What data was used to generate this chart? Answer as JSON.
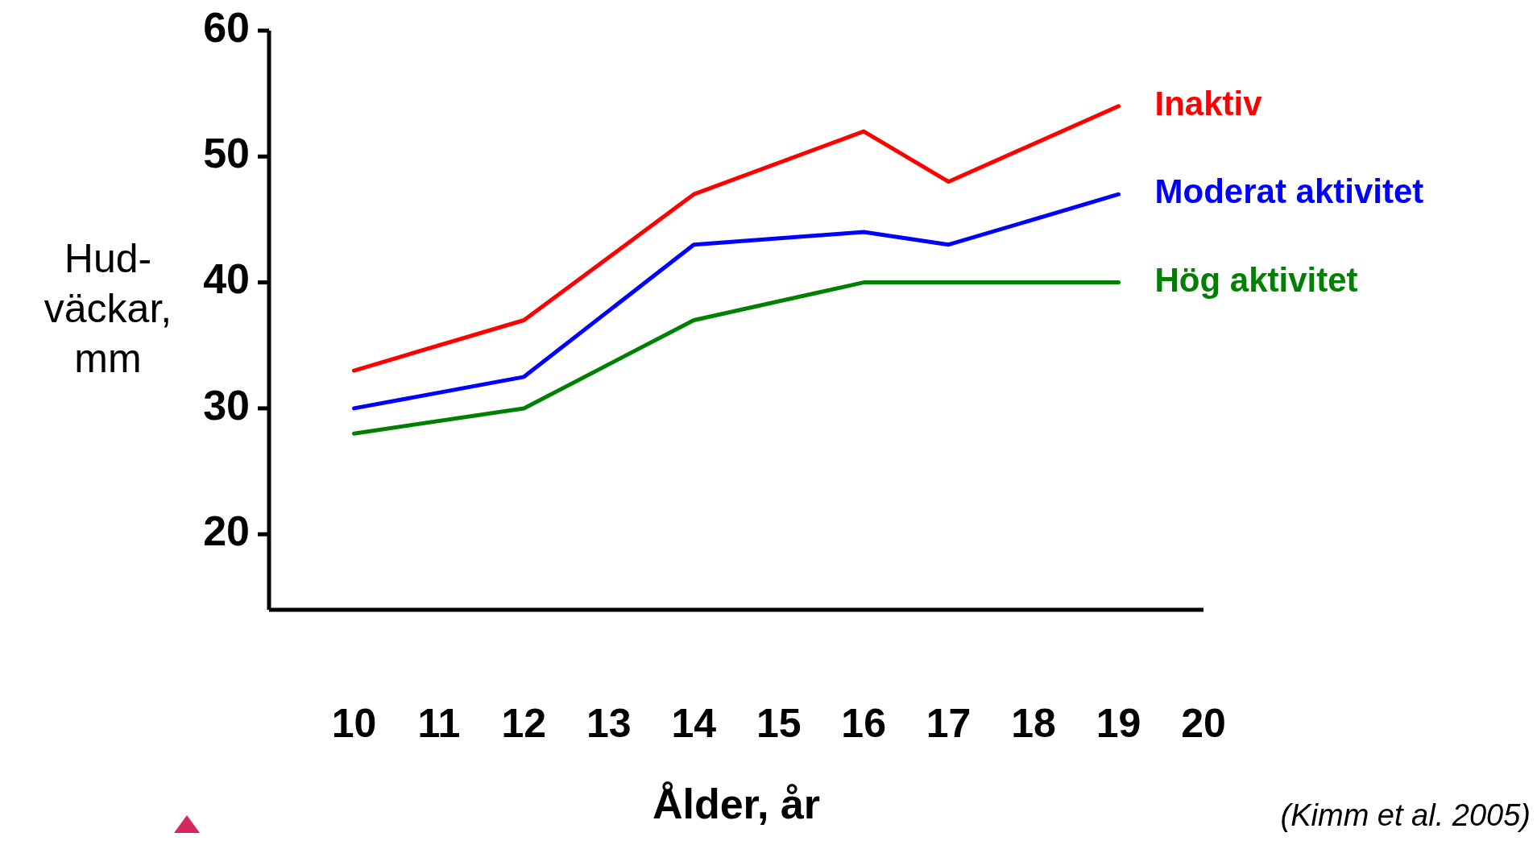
{
  "chart_data": {
    "type": "line",
    "xlabel": "Ålder, år",
    "ylabel": "Hud- väckar, mm",
    "annotations": [
      "(Kimm et al. 2005)"
    ],
    "x": [
      10,
      12,
      14,
      16,
      17,
      19
    ],
    "xlim": [
      9,
      20
    ],
    "xticks": [
      10,
      11,
      12,
      13,
      14,
      15,
      16,
      17,
      18,
      19,
      20
    ],
    "ylim": [
      14,
      60
    ],
    "yticks": [
      20,
      30,
      40,
      50,
      60
    ],
    "grid": false,
    "marker": "none",
    "line_style": "solid",
    "series": [
      {
        "name": "Inaktiv",
        "color": "#ff0000",
        "values": [
          33,
          37,
          47,
          52,
          48,
          54
        ]
      },
      {
        "name": "Moderat aktivitet",
        "color": "#0000ff",
        "values": [
          30,
          32.5,
          43,
          44,
          43,
          47
        ]
      },
      {
        "name": "Hög aktivitet",
        "color": "#008000",
        "values": [
          28,
          30,
          37,
          40,
          40,
          40
        ]
      }
    ]
  }
}
